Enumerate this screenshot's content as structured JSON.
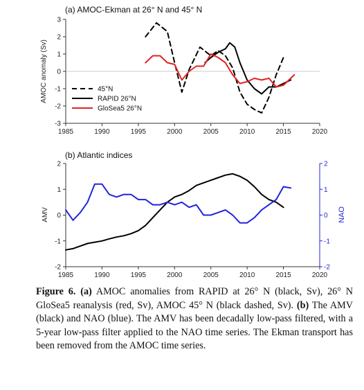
{
  "chart_data": [
    {
      "type": "line",
      "title": "(a) AMOC-Ekman at 26° N and 45° N",
      "ylabel": "AMOC anomaly (Sv)",
      "xlim": [
        1985,
        2020
      ],
      "ylim": [
        -3,
        3
      ],
      "xticks": [
        1985,
        1990,
        1995,
        2000,
        2005,
        2010,
        2015,
        2020
      ],
      "yticks": [
        -3,
        -2,
        -1,
        0,
        1,
        2,
        3
      ],
      "legend": "bottom-left",
      "series": [
        {
          "name": "45°N",
          "color": "#000000",
          "dashed": true,
          "x": [
            1996,
            1997.5,
            1999,
            2000,
            2001,
            2002,
            2003.5,
            2005,
            2006,
            2007,
            2008,
            2009,
            2010,
            2011,
            2012,
            2013,
            2014,
            2015
          ],
          "y": [
            2.0,
            2.8,
            2.3,
            0.5,
            -1.2,
            0.1,
            1.4,
            0.9,
            1.2,
            0.9,
            0.2,
            -1.2,
            -1.9,
            -2.2,
            -2.4,
            -1.5,
            -0.2,
            0.8
          ]
        },
        {
          "name": "RAPID 26°N",
          "color": "#000000",
          "dashed": false,
          "x": [
            2004.2,
            2005,
            2006,
            2007,
            2007.6,
            2008.3,
            2009,
            2010,
            2011,
            2012,
            2013,
            2014,
            2015,
            2016
          ],
          "y": [
            0.5,
            0.8,
            1.1,
            1.3,
            1.65,
            1.4,
            0.5,
            -0.5,
            -1.0,
            -1.3,
            -0.9,
            -0.9,
            -0.7,
            -0.5
          ]
        },
        {
          "name": "GloSea5 26°N",
          "color": "#e32222",
          "dashed": false,
          "x": [
            1996,
            1997,
            1998,
            1999,
            2000,
            2001,
            2002,
            2003,
            2004,
            2005,
            2006,
            2007,
            2008,
            2009,
            2010,
            2011,
            2012,
            2013,
            2014,
            2015,
            2016,
            2016.5
          ],
          "y": [
            0.5,
            0.9,
            0.9,
            0.5,
            0.4,
            -0.5,
            0.0,
            0.3,
            0.3,
            1.0,
            0.8,
            0.5,
            -0.2,
            -0.7,
            -0.6,
            -0.4,
            -0.5,
            -0.4,
            -0.9,
            -0.8,
            -0.4,
            -0.2
          ]
        }
      ]
    },
    {
      "type": "line",
      "title": "(b) Atlantic indices",
      "ylabel": "AMV",
      "y2label": "NAO",
      "xlim": [
        1985,
        2020
      ],
      "ylim": [
        -2,
        2
      ],
      "y2lim": [
        -2,
        2
      ],
      "xticks": [
        1985,
        1990,
        1995,
        2000,
        2005,
        2010,
        2015,
        2020
      ],
      "yticks": [
        -2,
        -1,
        0,
        1,
        2
      ],
      "y2ticks": [
        -2,
        -1,
        0,
        1,
        2
      ],
      "series": [
        {
          "name": "AMV",
          "color": "#000000",
          "axis": "left",
          "x": [
            1985,
            1986,
            1987,
            1988,
            1989,
            1990,
            1991,
            1992,
            1993,
            1994,
            1995,
            1996,
            1997,
            1998,
            1999,
            2000,
            2001,
            2002,
            2003,
            2004,
            2005,
            2006,
            2007,
            2008,
            2009,
            2010,
            2011,
            2012,
            2013,
            2014,
            2015
          ],
          "y": [
            -1.35,
            -1.3,
            -1.2,
            -1.1,
            -1.05,
            -1.0,
            -0.92,
            -0.85,
            -0.8,
            -0.72,
            -0.6,
            -0.4,
            -0.1,
            0.2,
            0.5,
            0.7,
            0.8,
            0.95,
            1.15,
            1.25,
            1.35,
            1.45,
            1.55,
            1.6,
            1.5,
            1.35,
            1.1,
            0.8,
            0.6,
            0.5,
            0.3
          ]
        },
        {
          "name": "NAO",
          "color": "#2222dd",
          "axis": "right",
          "x": [
            1985,
            1986,
            1987,
            1988,
            1989,
            1990,
            1991,
            1992,
            1993,
            1994,
            1995,
            1996,
            1997,
            1998,
            1999,
            2000,
            2001,
            2002,
            2003,
            2004,
            2005,
            2006,
            2007,
            2008,
            2009,
            2010,
            2011,
            2012,
            2013,
            2014,
            2015,
            2016
          ],
          "y": [
            0.2,
            -0.2,
            0.1,
            0.5,
            1.2,
            1.2,
            0.8,
            0.7,
            0.8,
            0.8,
            0.6,
            0.6,
            0.4,
            0.4,
            0.5,
            0.4,
            0.5,
            0.3,
            0.4,
            0.0,
            0.0,
            0.1,
            0.2,
            0.0,
            -0.3,
            -0.3,
            -0.1,
            0.2,
            0.4,
            0.6,
            1.1,
            1.05
          ]
        }
      ]
    }
  ],
  "caption": {
    "label": "Figure 6.",
    "pa": "(a)",
    "text_a": " AMOC anomalies from RAPID at 26° N (black, Sv), 26° N GloSea5 reanalysis (red, Sv), AMOC 45° N (black dashed, Sv). ",
    "pb": "(b)",
    "text_b": " The AMV (black) and NAO (blue). The AMV has been decadally low-pass filtered, with a 5-year low-pass filter applied to the NAO time series. The Ekman transport has been removed from the AMOC time series."
  }
}
